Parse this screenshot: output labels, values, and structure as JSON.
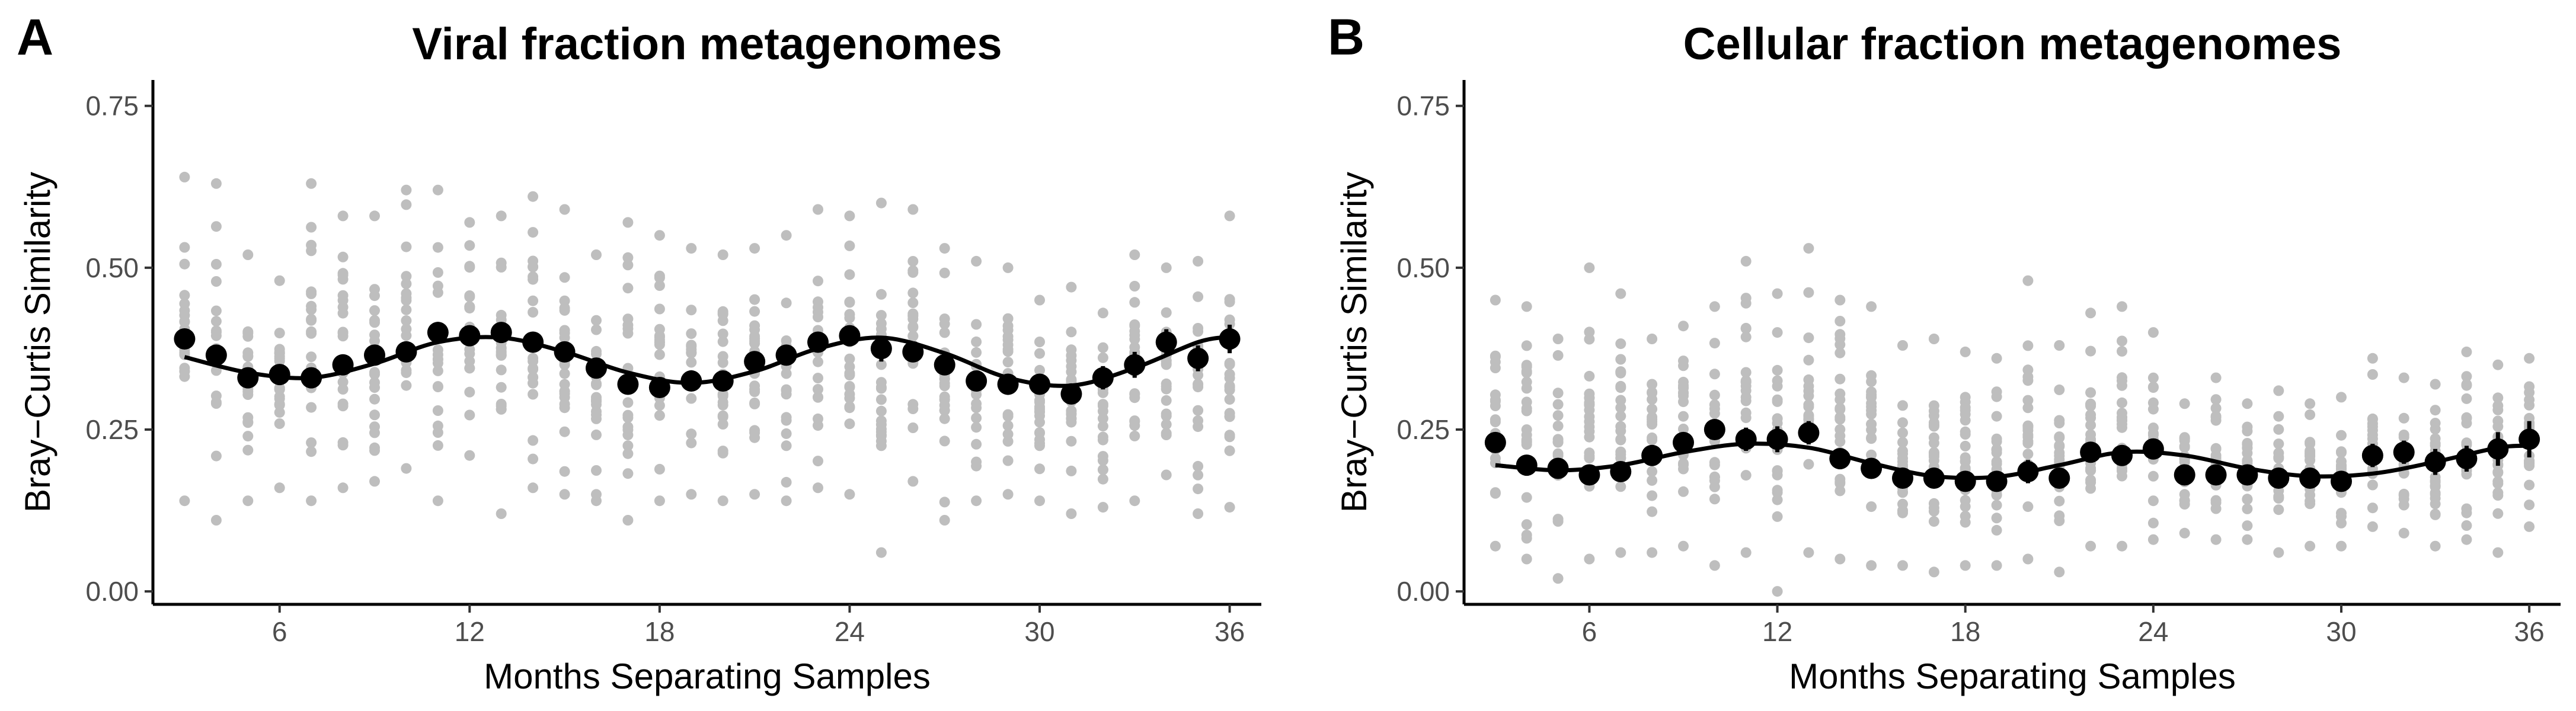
{
  "chart_data": [
    {
      "type": "scatter",
      "panel": "A",
      "title": "Viral fraction metagenomes",
      "xlabel": "Months Separating Samples",
      "ylabel": "Bray−Curtis Similarity",
      "xlim": [
        2,
        37
      ],
      "ylim": [
        -0.02,
        0.79
      ],
      "xticks": [
        6,
        12,
        18,
        24,
        30,
        36
      ],
      "xtick_labels": [
        "6",
        "12",
        "18",
        "24",
        "30",
        "36"
      ],
      "yticks": [
        0.0,
        0.25,
        0.5,
        0.75
      ],
      "ytick_labels": [
        "0.00",
        "0.25",
        "0.50",
        "0.75"
      ],
      "grid": false,
      "raw_color": "#bebebe",
      "mean_color": "#000000",
      "fit_color": "#000000",
      "raw_ranges": [
        {
          "x": 3,
          "min": 0.14,
          "max": 0.64
        },
        {
          "x": 4,
          "min": 0.11,
          "max": 0.63
        },
        {
          "x": 5,
          "min": 0.14,
          "max": 0.52
        },
        {
          "x": 6,
          "min": 0.16,
          "max": 0.48
        },
        {
          "x": 7,
          "min": 0.14,
          "max": 0.63
        },
        {
          "x": 8,
          "min": 0.16,
          "max": 0.58
        },
        {
          "x": 9,
          "min": 0.17,
          "max": 0.58
        },
        {
          "x": 10,
          "min": 0.19,
          "max": 0.62
        },
        {
          "x": 11,
          "min": 0.14,
          "max": 0.62
        },
        {
          "x": 12,
          "min": 0.21,
          "max": 0.57
        },
        {
          "x": 13,
          "min": 0.12,
          "max": 0.58
        },
        {
          "x": 14,
          "min": 0.16,
          "max": 0.61
        },
        {
          "x": 15,
          "min": 0.15,
          "max": 0.59
        },
        {
          "x": 16,
          "min": 0.14,
          "max": 0.52
        },
        {
          "x": 17,
          "min": 0.11,
          "max": 0.57
        },
        {
          "x": 18,
          "min": 0.14,
          "max": 0.55
        },
        {
          "x": 19,
          "min": 0.15,
          "max": 0.53
        },
        {
          "x": 20,
          "min": 0.14,
          "max": 0.52
        },
        {
          "x": 21,
          "min": 0.15,
          "max": 0.53
        },
        {
          "x": 22,
          "min": 0.14,
          "max": 0.55
        },
        {
          "x": 23,
          "min": 0.16,
          "max": 0.59
        },
        {
          "x": 24,
          "min": 0.15,
          "max": 0.58
        },
        {
          "x": 25,
          "min": 0.06,
          "max": 0.6
        },
        {
          "x": 26,
          "min": 0.17,
          "max": 0.59
        },
        {
          "x": 27,
          "min": 0.11,
          "max": 0.53
        },
        {
          "x": 28,
          "min": 0.14,
          "max": 0.51
        },
        {
          "x": 29,
          "min": 0.15,
          "max": 0.5
        },
        {
          "x": 30,
          "min": 0.14,
          "max": 0.45
        },
        {
          "x": 31,
          "min": 0.12,
          "max": 0.47
        },
        {
          "x": 32,
          "min": 0.13,
          "max": 0.43
        },
        {
          "x": 33,
          "min": 0.14,
          "max": 0.52
        },
        {
          "x": 34,
          "min": 0.18,
          "max": 0.5
        },
        {
          "x": 35,
          "min": 0.12,
          "max": 0.51
        },
        {
          "x": 36,
          "min": 0.13,
          "max": 0.58
        }
      ],
      "means": {
        "x": [
          3,
          4,
          5,
          6,
          7,
          8,
          9,
          10,
          11,
          12,
          13,
          14,
          15,
          16,
          17,
          18,
          19,
          20,
          21,
          22,
          23,
          24,
          25,
          26,
          27,
          28,
          29,
          30,
          31,
          32,
          33,
          34,
          35,
          36
        ],
        "y": [
          0.39,
          0.365,
          0.33,
          0.335,
          0.33,
          0.35,
          0.365,
          0.37,
          0.4,
          0.395,
          0.4,
          0.385,
          0.37,
          0.345,
          0.32,
          0.315,
          0.325,
          0.325,
          0.355,
          0.365,
          0.385,
          0.395,
          0.375,
          0.37,
          0.35,
          0.325,
          0.32,
          0.32,
          0.305,
          0.33,
          0.35,
          0.385,
          0.36,
          0.39
        ],
        "err": [
          0.015,
          0.014,
          0.012,
          0.013,
          0.012,
          0.014,
          0.014,
          0.015,
          0.015,
          0.015,
          0.014,
          0.014,
          0.014,
          0.014,
          0.013,
          0.014,
          0.014,
          0.014,
          0.015,
          0.015,
          0.015,
          0.015,
          0.02,
          0.016,
          0.015,
          0.015,
          0.015,
          0.015,
          0.015,
          0.018,
          0.02,
          0.02,
          0.02,
          0.022
        ]
      },
      "fit": {
        "x": [
          3,
          5,
          7,
          9,
          11,
          13,
          15,
          17,
          19,
          21,
          23,
          25,
          27,
          29,
          31,
          33,
          35,
          36
        ],
        "y": [
          0.362,
          0.338,
          0.33,
          0.352,
          0.385,
          0.392,
          0.37,
          0.338,
          0.322,
          0.34,
          0.375,
          0.392,
          0.368,
          0.33,
          0.318,
          0.345,
          0.385,
          0.393
        ]
      }
    },
    {
      "type": "scatter",
      "panel": "B",
      "title": "Cellular fraction metagenomes",
      "xlabel": "Months Separating Samples",
      "ylabel": "Bray−Curtis Similarity",
      "xlim": [
        2,
        37
      ],
      "ylim": [
        -0.02,
        0.79
      ],
      "xticks": [
        6,
        12,
        18,
        24,
        30,
        36
      ],
      "xtick_labels": [
        "6",
        "12",
        "18",
        "24",
        "30",
        "36"
      ],
      "yticks": [
        0.0,
        0.25,
        0.5,
        0.75
      ],
      "ytick_labels": [
        "0.00",
        "0.25",
        "0.50",
        "0.75"
      ],
      "grid": false,
      "raw_color": "#bebebe",
      "mean_color": "#000000",
      "fit_color": "#000000",
      "raw_ranges": [
        {
          "x": 3,
          "min": 0.07,
          "max": 0.45
        },
        {
          "x": 4,
          "min": 0.05,
          "max": 0.44
        },
        {
          "x": 5,
          "min": 0.02,
          "max": 0.39
        },
        {
          "x": 6,
          "min": 0.05,
          "max": 0.5
        },
        {
          "x": 7,
          "min": 0.06,
          "max": 0.46
        },
        {
          "x": 8,
          "min": 0.06,
          "max": 0.39
        },
        {
          "x": 9,
          "min": 0.07,
          "max": 0.41
        },
        {
          "x": 10,
          "min": 0.04,
          "max": 0.44
        },
        {
          "x": 11,
          "min": 0.06,
          "max": 0.51
        },
        {
          "x": 12,
          "min": 0.0,
          "max": 0.46
        },
        {
          "x": 13,
          "min": 0.06,
          "max": 0.53
        },
        {
          "x": 14,
          "min": 0.05,
          "max": 0.45
        },
        {
          "x": 15,
          "min": 0.04,
          "max": 0.44
        },
        {
          "x": 16,
          "min": 0.04,
          "max": 0.38
        },
        {
          "x": 17,
          "min": 0.03,
          "max": 0.39
        },
        {
          "x": 18,
          "min": 0.04,
          "max": 0.37
        },
        {
          "x": 19,
          "min": 0.04,
          "max": 0.36
        },
        {
          "x": 20,
          "min": 0.05,
          "max": 0.48
        },
        {
          "x": 21,
          "min": 0.03,
          "max": 0.38
        },
        {
          "x": 22,
          "min": 0.07,
          "max": 0.43
        },
        {
          "x": 23,
          "min": 0.07,
          "max": 0.44
        },
        {
          "x": 24,
          "min": 0.08,
          "max": 0.4
        },
        {
          "x": 25,
          "min": 0.09,
          "max": 0.29
        },
        {
          "x": 26,
          "min": 0.08,
          "max": 0.33
        },
        {
          "x": 27,
          "min": 0.08,
          "max": 0.29
        },
        {
          "x": 28,
          "min": 0.06,
          "max": 0.31
        },
        {
          "x": 29,
          "min": 0.07,
          "max": 0.29
        },
        {
          "x": 30,
          "min": 0.07,
          "max": 0.3
        },
        {
          "x": 31,
          "min": 0.1,
          "max": 0.36
        },
        {
          "x": 32,
          "min": 0.09,
          "max": 0.33
        },
        {
          "x": 33,
          "min": 0.07,
          "max": 0.32
        },
        {
          "x": 34,
          "min": 0.08,
          "max": 0.37
        },
        {
          "x": 35,
          "min": 0.06,
          "max": 0.35
        },
        {
          "x": 36,
          "min": 0.1,
          "max": 0.36
        }
      ],
      "means": {
        "x": [
          3,
          4,
          5,
          6,
          7,
          8,
          9,
          10,
          11,
          12,
          13,
          14,
          15,
          16,
          17,
          18,
          19,
          20,
          21,
          22,
          23,
          24,
          25,
          26,
          27,
          28,
          29,
          30,
          31,
          32,
          33,
          34,
          35,
          36
        ],
        "y": [
          0.23,
          0.195,
          0.19,
          0.18,
          0.185,
          0.21,
          0.23,
          0.25,
          0.235,
          0.235,
          0.245,
          0.205,
          0.19,
          0.175,
          0.175,
          0.17,
          0.17,
          0.185,
          0.175,
          0.215,
          0.21,
          0.22,
          0.18,
          0.18,
          0.18,
          0.175,
          0.175,
          0.17,
          0.21,
          0.215,
          0.2,
          0.205,
          0.22,
          0.235
        ],
        "err": [
          0.015,
          0.013,
          0.013,
          0.012,
          0.013,
          0.014,
          0.014,
          0.015,
          0.018,
          0.02,
          0.018,
          0.016,
          0.015,
          0.014,
          0.014,
          0.014,
          0.014,
          0.018,
          0.015,
          0.016,
          0.016,
          0.016,
          0.012,
          0.012,
          0.012,
          0.012,
          0.012,
          0.013,
          0.018,
          0.018,
          0.02,
          0.02,
          0.026,
          0.028
        ]
      },
      "fit": {
        "x": [
          3,
          5,
          7,
          9,
          11,
          13,
          15,
          17,
          19,
          21,
          23,
          25,
          27,
          29,
          31,
          33,
          35,
          36
        ],
        "y": [
          0.195,
          0.187,
          0.195,
          0.215,
          0.228,
          0.222,
          0.198,
          0.178,
          0.177,
          0.195,
          0.215,
          0.21,
          0.19,
          0.178,
          0.182,
          0.2,
          0.222,
          0.225
        ]
      }
    }
  ]
}
